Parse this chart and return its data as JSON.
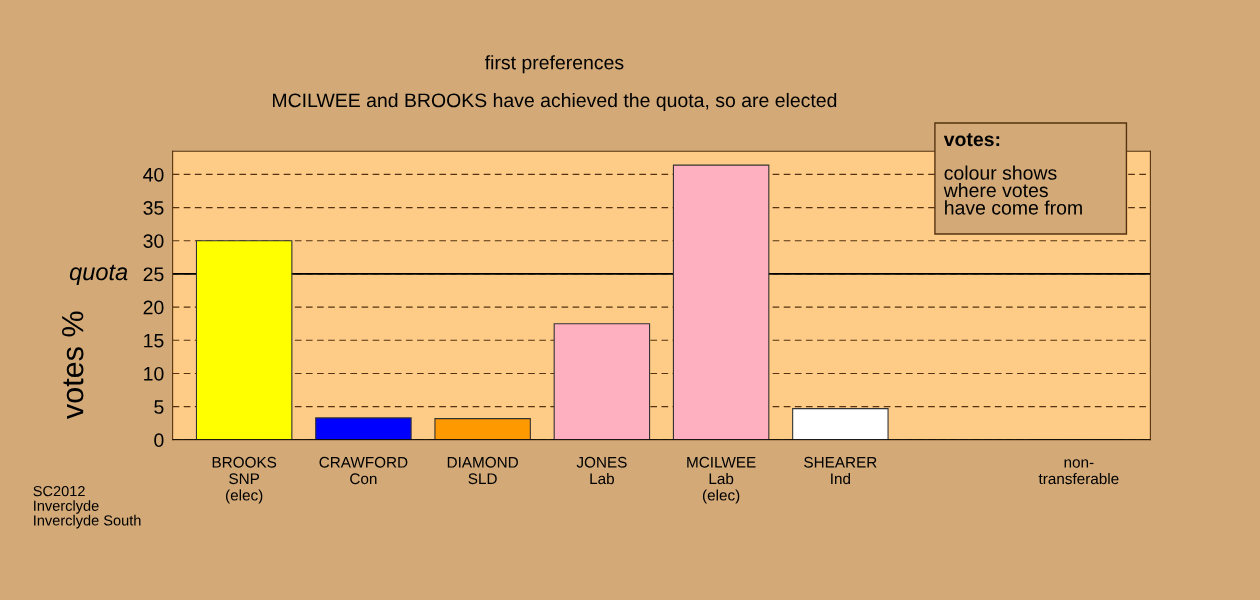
{
  "chart_data": {
    "type": "bar",
    "title": "first preferences",
    "subtitle": "MCILWEE and BROOKS have achieved the quota, so are elected",
    "ylabel": "votes %",
    "categories": [
      "BROOKS\nSNP\n(elec)",
      "CRAWFORD\nCon",
      "DIAMOND\nSLD",
      "JONES\nLab",
      "MCILWEE\nLab\n(elec)",
      "SHEARER\nInd",
      null,
      "non-\ntransferable"
    ],
    "values": [
      30.0,
      3.3,
      3.2,
      17.5,
      41.4,
      4.7,
      null,
      0
    ],
    "colors": [
      "#ffff00",
      "#0000ff",
      "#ff9900",
      "#ffb0c0",
      "#ffb0c0",
      "#ffffff",
      "#ffffff",
      "#333333"
    ],
    "ylim": [
      0,
      43.5
    ],
    "yticks": [
      0,
      5,
      10,
      15,
      20,
      25,
      30,
      35,
      40
    ],
    "grid": "y",
    "ref_lines": [
      {
        "axis": "y",
        "value": 25,
        "label": "quota",
        "color": "#000000",
        "line_style": "solid"
      }
    ],
    "annotations": [
      "votes:",
      "colour shows\nwhere votes\nhave come from",
      "SC2012\nInverclyde\nInverclyde South"
    ]
  }
}
